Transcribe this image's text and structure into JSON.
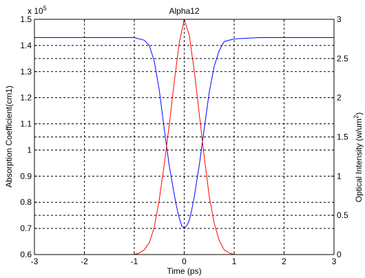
{
  "chart_data": {
    "type": "line",
    "title": "Alpha12",
    "xlabel": "Time (ps)",
    "ylabel_left": "Absorption Coefficient(cm1)",
    "ylabel_right": "Optical Intensity (w/um²)",
    "left_axis_multiplier": "x 10^5",
    "xlim": [
      -3,
      3
    ],
    "ylim_left": [
      0.6,
      1.5
    ],
    "ylim_right": [
      0,
      3
    ],
    "x_ticks": [
      "-3",
      "-2",
      "-1",
      "0",
      "1",
      "2",
      "3"
    ],
    "y_ticks_left": [
      "0.6",
      "0.7",
      "0.8",
      "0.9",
      "1",
      "1.1",
      "1.2",
      "1.3",
      "1.4",
      "1.5"
    ],
    "y_ticks_right": [
      "0",
      "0.5",
      "1",
      "1.5",
      "2",
      "2.5",
      "3"
    ],
    "grid": true,
    "series": [
      {
        "axis": "left",
        "color": "#0000ff",
        "x": [
          -3,
          -1.5,
          -1.0,
          -0.8,
          -0.7,
          -0.6,
          -0.5,
          -0.4,
          -0.3,
          -0.2,
          -0.15,
          -0.1,
          -0.05,
          0.0,
          0.05,
          0.1,
          0.15,
          0.2,
          0.3,
          0.4,
          0.5,
          0.6,
          0.7,
          0.8,
          1.0,
          1.5,
          3.0
        ],
        "values": [
          1.43,
          1.43,
          1.43,
          1.42,
          1.4,
          1.34,
          1.23,
          1.08,
          0.94,
          0.83,
          0.78,
          0.74,
          0.71,
          0.7,
          0.71,
          0.73,
          0.77,
          0.82,
          0.94,
          1.08,
          1.22,
          1.32,
          1.38,
          1.415,
          1.425,
          1.43,
          1.43
        ]
      },
      {
        "axis": "right",
        "color": "#ff0000",
        "x": [
          -3,
          -1.0,
          -0.9,
          -0.8,
          -0.7,
          -0.6,
          -0.5,
          -0.4,
          -0.3,
          -0.2,
          -0.1,
          0.0,
          0.1,
          0.2,
          0.3,
          0.4,
          0.5,
          0.6,
          0.7,
          0.8,
          0.9,
          1.0,
          3.0
        ],
        "values": [
          0,
          0,
          0.02,
          0.06,
          0.15,
          0.35,
          0.7,
          1.15,
          1.65,
          2.2,
          2.7,
          3.0,
          2.8,
          2.35,
          1.8,
          1.25,
          0.75,
          0.4,
          0.18,
          0.06,
          0.02,
          0,
          0
        ]
      }
    ]
  }
}
